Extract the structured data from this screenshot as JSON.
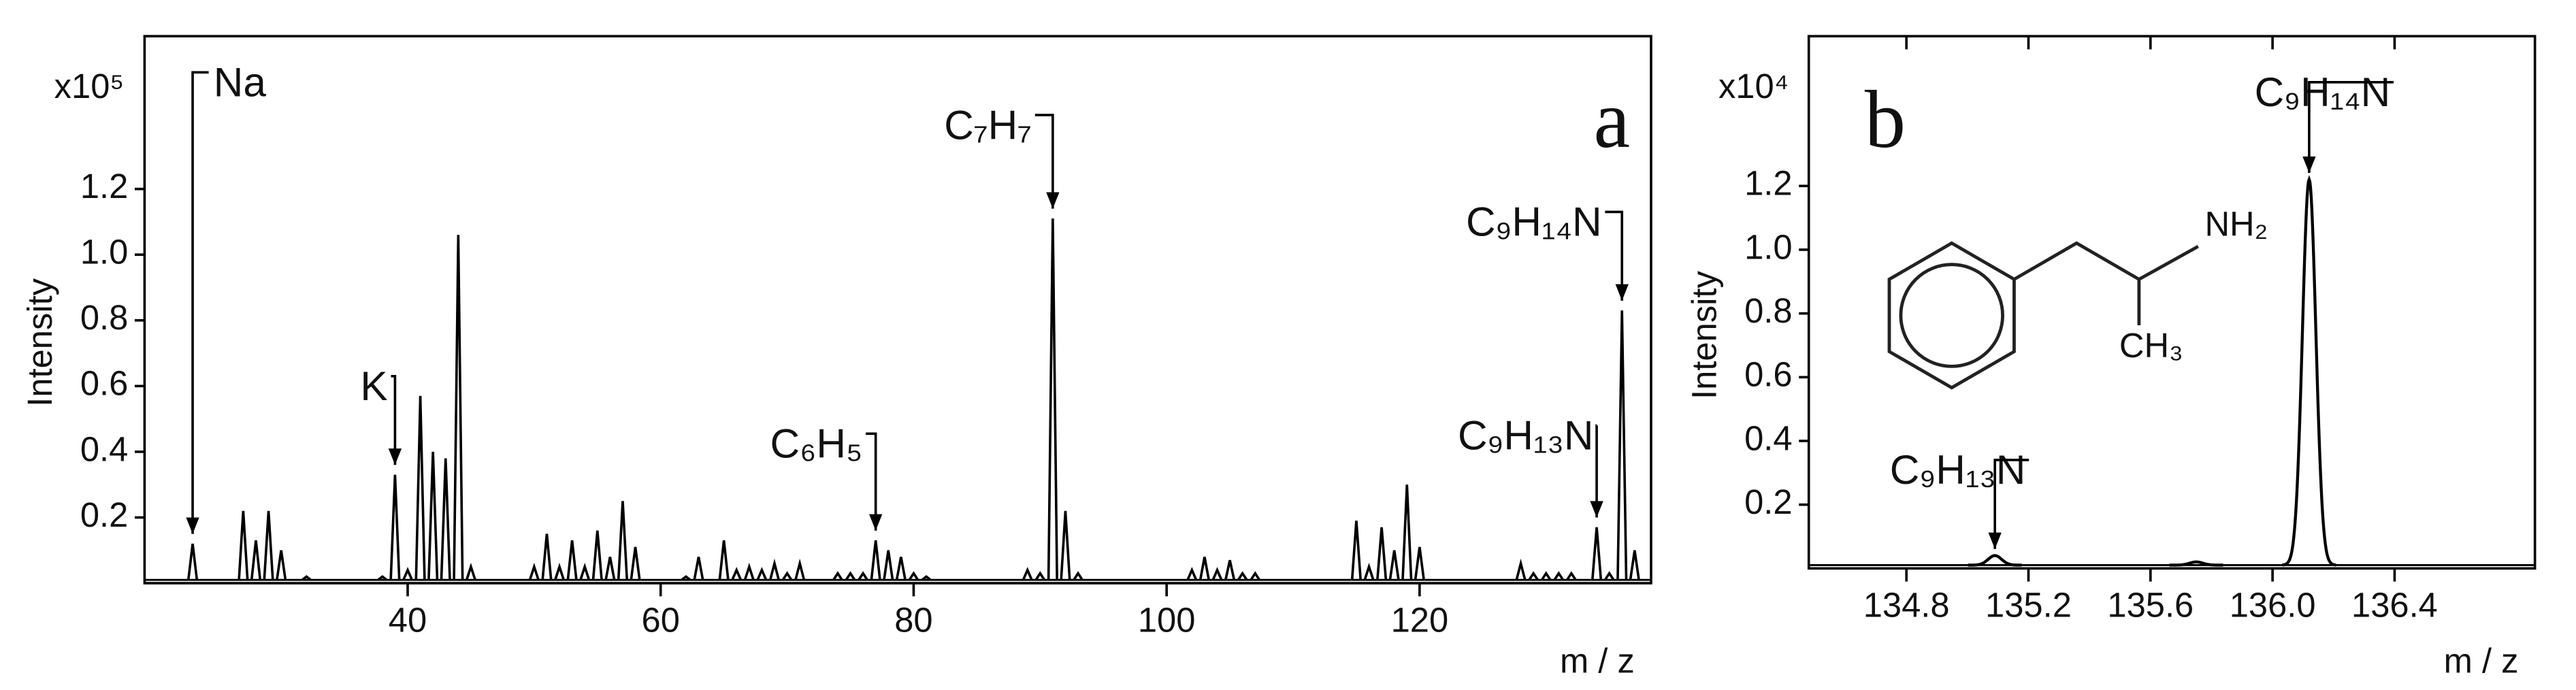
{
  "chart_data": [
    {
      "type": "spectrum",
      "panel": "a",
      "multiplier": "x10⁵",
      "ylabel": "Intensity",
      "xlabel": "m / z",
      "color": "#000000",
      "xlim": [
        19.2,
        138.3
      ],
      "ylim": [
        0,
        1.665
      ],
      "xticks": [
        40,
        60,
        80,
        100,
        120
      ],
      "yticks": [
        0.2,
        0.4,
        0.6,
        0.8,
        {
          "value": 1.0,
          "label": "1.0"
        },
        1.2
      ],
      "x": [
        23,
        27,
        28,
        29,
        30,
        32,
        38,
        39,
        40,
        41,
        42,
        43,
        44,
        45,
        50,
        51,
        52,
        53,
        54,
        55,
        56,
        57,
        58,
        62,
        63,
        65,
        66,
        67,
        68,
        69,
        70,
        71,
        74,
        75,
        76,
        77,
        78,
        79,
        80,
        81,
        89,
        90,
        91,
        92,
        93,
        102,
        103,
        104,
        105,
        106,
        107,
        115,
        116,
        117,
        118,
        119,
        120,
        128,
        129,
        130,
        131,
        132,
        134,
        135,
        136,
        137
      ],
      "values": [
        0.12,
        0.22,
        0.13,
        0.22,
        0.1,
        0.02,
        0.02,
        0.33,
        0.04,
        0.57,
        0.4,
        0.38,
        1.06,
        0.05,
        0.05,
        0.15,
        0.05,
        0.13,
        0.05,
        0.16,
        0.08,
        0.25,
        0.11,
        0.02,
        0.08,
        0.13,
        0.04,
        0.05,
        0.04,
        0.06,
        0.03,
        0.06,
        0.03,
        0.03,
        0.03,
        0.13,
        0.1,
        0.08,
        0.03,
        0.02,
        0.04,
        0.03,
        1.11,
        0.22,
        0.03,
        0.04,
        0.08,
        0.04,
        0.07,
        0.03,
        0.03,
        0.19,
        0.05,
        0.17,
        0.1,
        0.3,
        0.11,
        0.06,
        0.03,
        0.03,
        0.03,
        0.03,
        0.17,
        0.03,
        0.83,
        0.1
      ],
      "annotations": [
        {
          "text": "Na",
          "x": 23
        },
        {
          "text": "K",
          "x": 39
        },
        {
          "text": "C₆H₅",
          "x": 77
        },
        {
          "text": "C₇H₇",
          "x": 91
        },
        {
          "text": "C₉H₁₄N",
          "x": 136
        },
        {
          "text": "C₉H₁₃N",
          "x": 134
        }
      ]
    },
    {
      "type": "profile",
      "panel": "b",
      "multiplier": "x10⁴",
      "ylabel": "Intensity",
      "xlabel": "m / z",
      "color": "#000000",
      "xlim": [
        134.48,
        136.86
      ],
      "ylim": [
        0,
        1.67
      ],
      "xticks": [
        134.8,
        135.2,
        135.6,
        {
          "value": 136.0,
          "label": "136.0"
        },
        136.4
      ],
      "yticks": [
        0.2,
        0.4,
        0.6,
        0.8,
        {
          "value": 1.0,
          "label": "1.0"
        },
        1.2
      ],
      "x": [
        135.09,
        135.75,
        136.12
      ],
      "values": [
        0.03,
        0.01,
        1.21
      ],
      "annotations": [
        {
          "text": "C₉H₁₃N",
          "x": 135.09
        },
        {
          "text": "C₉H₁₄N",
          "x": 136.12
        }
      ]
    }
  ],
  "structure": {
    "amine": "NH₂",
    "methyl": "CH₃"
  }
}
